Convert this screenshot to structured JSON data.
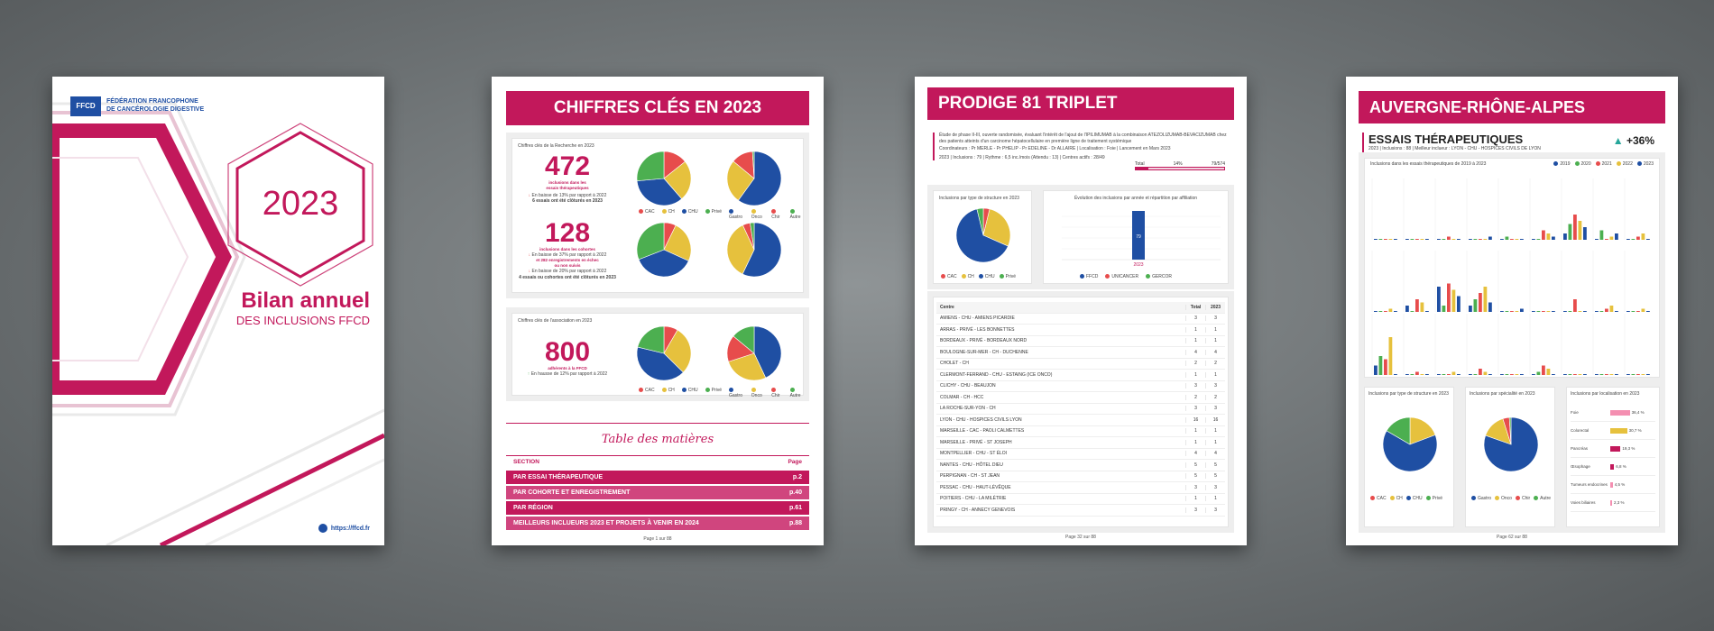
{
  "colors": {
    "pink": "#c2185b",
    "blue": "#1f4fa3",
    "yellow": "#e6c13d",
    "green": "#4caf50",
    "red": "#e74c4c",
    "orange": "#f39c12",
    "purple": "#8e44ad",
    "lightpink": "#f48fb1"
  },
  "cover": {
    "org_line1": "FÉDÉRATION FRANCOPHONE",
    "org_line2": "DE CANCÉROLOGIE DIGESTIVE",
    "logo_text": "FFCD",
    "year": "2023",
    "title": "Bilan annuel",
    "subtitle": "DES INCLUSIONS FFCD",
    "url": "https://ffcd.fr"
  },
  "keyfigures": {
    "header": "CHIFFRES CLÉS EN 2023",
    "research_label": "Chiffres clés de la Recherche en 2023",
    "n472": "472",
    "n472_sub1": "inclusions dans les",
    "n472_sub2": "essais thérapeutiques",
    "n472_trend": "En baisse de 13% par rapport à 2022",
    "n472_note": "6 essais ont été clôturés en 2023",
    "n128": "128",
    "n128_sub1": "inclusions dans les cohortes",
    "n128_trend": "En baisse de 37% par rapport à 2022",
    "n128_extra1": "et 282 enregistrements en échec",
    "n128_extra2": "ou non suivis",
    "n128_trend2": "En baisse de 20% par rapport à 2022",
    "n128_note": "4 essais ou cohortes ont été clôturés en 2023",
    "assoc_label": "Chiffres clés de l'association en 2023",
    "n800": "800",
    "n800_sub": "adhérents à la FFCD",
    "n800_trend": "En hausse de 12% par rapport à 2022",
    "legend_struct": [
      "CAC",
      "CH",
      "CHU",
      "Privé"
    ],
    "legend_spec": [
      "Gastro",
      "Onco",
      "Chir",
      "Autre"
    ],
    "toc_title": "Table des matières",
    "toc_header_section": "SECTION",
    "toc_header_page": "Page",
    "toc": [
      {
        "label": "PAR ESSAI THÉRAPEUTIQUE",
        "page": "p.2"
      },
      {
        "label": "PAR COHORTE ET ENREGISTREMENT",
        "page": "p.40"
      },
      {
        "label": "PAR RÉGION",
        "page": "p.61"
      },
      {
        "label": "MEILLEURS INCLUEURS 2023 ET PROJETS À VENIR EN 2024",
        "page": "p.88"
      }
    ],
    "footer": "Page 1 sur 88"
  },
  "prodige": {
    "header": "PRODIGE 81 TRIPLET",
    "desc": "Étude de phase II-III, ouverte randomisée, évaluant l'intérêt de l'ajout de l'IPILIMUMAB à la combinaison ATEZOLIZUMAB-BEVACIZUMAB chez des patients atteints d'un carcinome hépatocellulaire en première ligne de traitement systémique",
    "coord": "Coordinateurs : Pr MERLE - Pr PHELIP - Pr EDELINE - Dr ALLAIRE  |  Localisation : Foie  |  Lancement en Mars 2023",
    "stats": "2023  |  Inclusions : 79  |  Rythme : 6,5 inc./mois (Attendu : 13)  |  Centres actifs : 28/49",
    "total_label": "Total",
    "total_pct": "14%",
    "total_frac": "79/574",
    "pie_title": "Inclusions par type de structure en 2023",
    "bar_title": "Évolution des inclusions par année et répartition par affiliation",
    "bar_value": "79",
    "bar_year": "2023",
    "bar_legend": [
      "FFCD",
      "UNICANCER",
      "GERCOR"
    ],
    "table_head": [
      "Centre",
      "Total",
      "2023"
    ],
    "centers": [
      [
        "AMIENS - CHU - AMIENS PICARDIE",
        "3",
        "3"
      ],
      [
        "ARRAS - PRIVÉ - LES BONNETTES",
        "1",
        "1"
      ],
      [
        "BORDEAUX - PRIVÉ - BORDEAUX NORD",
        "1",
        "1"
      ],
      [
        "BOULOGNE-SUR-MER - CH - DUCHENNE",
        "4",
        "4"
      ],
      [
        "CHOLET - CH",
        "2",
        "2"
      ],
      [
        "CLERMONT-FERRAND - CHU - ESTAING (ICE ONCO)",
        "1",
        "1"
      ],
      [
        "CLICHY - CHU - BEAUJON",
        "3",
        "3"
      ],
      [
        "COLMAR - CH - HCC",
        "2",
        "2"
      ],
      [
        "LA ROCHE-SUR-YON - CH",
        "3",
        "3"
      ],
      [
        "LYON - CHU - HOSPICES CIVILS LYON",
        "16",
        "16"
      ],
      [
        "MARSEILLE - CAC - PAOLI CALMETTES",
        "1",
        "1"
      ],
      [
        "MARSEILLE - PRIVÉ - ST JOSEPH",
        "1",
        "1"
      ],
      [
        "MONTPELLIER - CHU - ST ÉLOI",
        "4",
        "4"
      ],
      [
        "NANTES - CHU - HÔTEL DIEU",
        "5",
        "5"
      ],
      [
        "PERPIGNAN - CH - ST JEAN",
        "5",
        "5"
      ],
      [
        "PESSAC - CHU - HAUT-LÉVÊQUE",
        "3",
        "3"
      ],
      [
        "POITIERS - CHU - LA MILÉTRIE",
        "1",
        "1"
      ],
      [
        "PRINGY - CH - ANNECY GENEVOIS",
        "3",
        "3"
      ]
    ],
    "footer": "Page 32 sur 88"
  },
  "region": {
    "header": "AUVERGNE-RHÔNE-ALPES",
    "section": "ESSAIS THÉRAPEUTIQUES",
    "stats": "2023  |  Inclusions : 88  |  Meilleur inclueur : LYON - CHU - HOSPICES CIVILS DE LYON",
    "trend": "+36%",
    "chart_title": "Inclusions dans les essais thérapeutiques de 2019 à 2023",
    "years": [
      "2019",
      "2020",
      "2021",
      "2022",
      "2023"
    ],
    "pie1_title": "Inclusions par type de structure en 2023",
    "pie2_title": "Inclusions par spécialité en 2023",
    "loc_title": "Inclusions par localisation en 2023",
    "loc": [
      {
        "name": "Foie",
        "pct": "36,4 %",
        "val": 0.36
      },
      {
        "name": "Colorectal",
        "pct": "30,7 %",
        "val": 0.31
      },
      {
        "name": "Pancréas",
        "pct": "19,3 %",
        "val": 0.19
      },
      {
        "name": "Œsophage",
        "pct": "6,8 %",
        "val": 0.07
      },
      {
        "name": "Tumeurs endocrines",
        "pct": "4,5 %",
        "val": 0.045
      },
      {
        "name": "Voies biliaires",
        "pct": "2,3 %",
        "val": 0.023
      }
    ],
    "footer": "Page 62 sur 88"
  }
}
